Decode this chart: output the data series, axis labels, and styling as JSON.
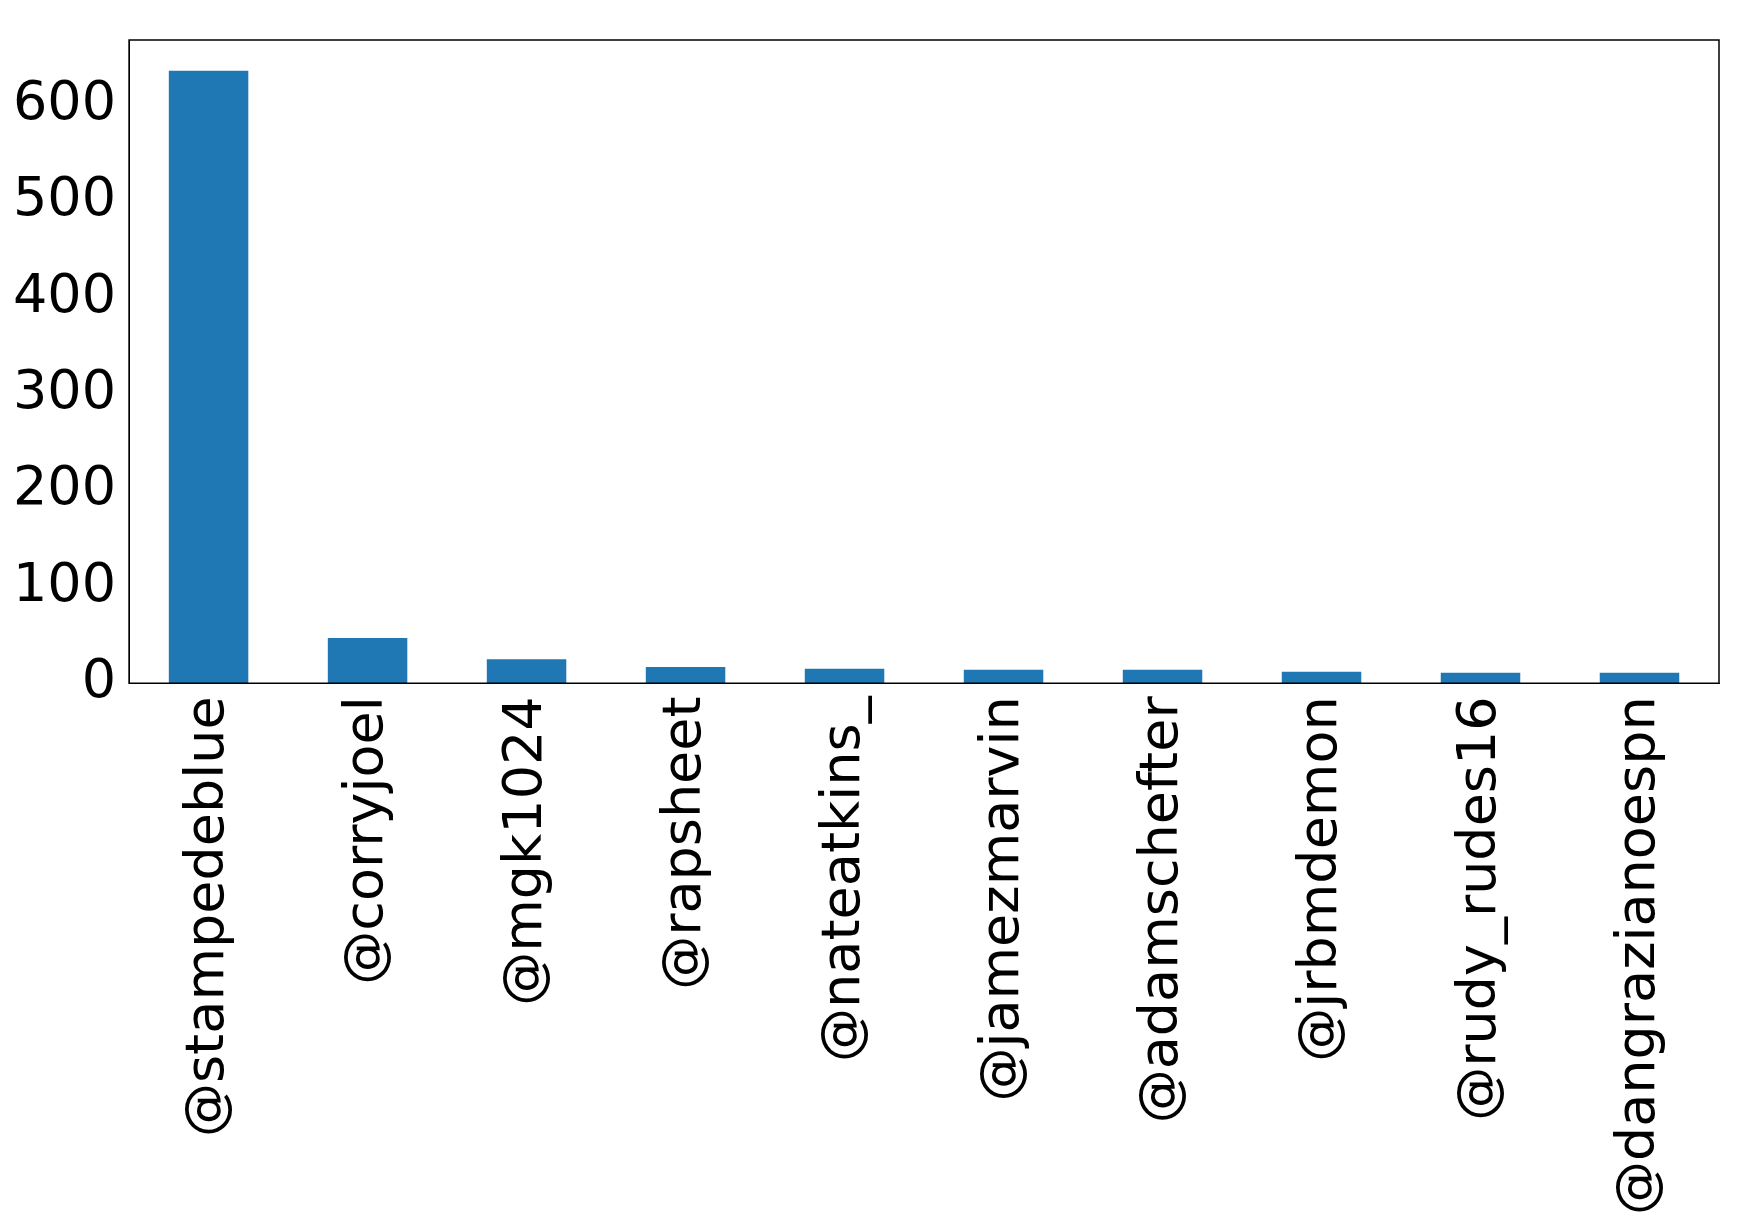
{
  "chart_data": {
    "type": "bar",
    "categories": [
      "@stampedeblue",
      "@corryjoel",
      "@mgk1024",
      "@rapsheet",
      "@nateatkins_",
      "@jamezmarvin",
      "@adamschefter",
      "@jrbmdemon",
      "@rudy_rudes16",
      "@dangrazianoespn"
    ],
    "values": [
      635,
      47,
      25,
      17,
      15,
      14,
      14,
      12,
      11,
      11
    ],
    "color": "#1f77b4",
    "ylim": [
      0,
      667
    ],
    "yticks": [
      0,
      100,
      200,
      300,
      400,
      500,
      600
    ],
    "grid": false,
    "legend": false
  }
}
